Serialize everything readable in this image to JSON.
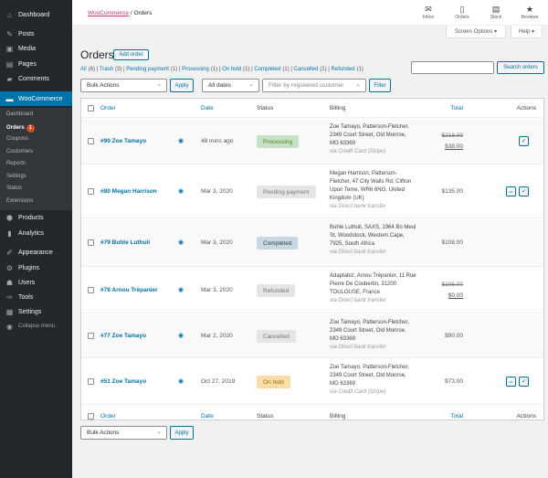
{
  "sidebar": {
    "top": [
      {
        "label": "Dashboard",
        "icon": "dashboard-icon",
        "g": "⌂"
      },
      {
        "label": "Posts",
        "icon": "pin-icon",
        "g": "✎"
      },
      {
        "label": "Media",
        "icon": "media-icon",
        "g": "▣"
      },
      {
        "label": "Pages",
        "icon": "pages-icon",
        "g": "▤"
      },
      {
        "label": "Comments",
        "icon": "comment-icon",
        "g": "▰"
      }
    ],
    "woo": "WooCommerce",
    "sub": [
      "Dashboard",
      "Orders",
      "Coupons",
      "Customers",
      "Reports",
      "Settings",
      "Status",
      "Extensions"
    ],
    "orders_badge": "1",
    "bottom": [
      {
        "label": "Products",
        "icon": "products-icon",
        "g": "⬢"
      },
      {
        "label": "Analytics",
        "icon": "analytics-icon",
        "g": "▮"
      },
      {
        "label": "Appearance",
        "icon": "appearance-icon",
        "g": "✐"
      },
      {
        "label": "Plugins",
        "icon": "plugins-icon",
        "g": "⚙"
      },
      {
        "label": "Users",
        "icon": "users-icon",
        "g": "☗"
      },
      {
        "label": "Tools",
        "icon": "tools-icon",
        "g": "✑"
      },
      {
        "label": "Settings",
        "icon": "settings-icon",
        "g": "▦"
      }
    ],
    "collapse": "Collapse menu"
  },
  "topbar": {
    "crumb_link": "WooCommerce",
    "crumb_sep": " / ",
    "crumb_current": "Orders",
    "items": [
      {
        "label": "Inbox",
        "g": "✉"
      },
      {
        "label": "Orders",
        "g": "▯"
      },
      {
        "label": "Stock",
        "g": "▤"
      },
      {
        "label": "Reviews",
        "g": "★"
      }
    ],
    "screen_options": "Screen Options ▾",
    "help": "Help ▾"
  },
  "page": {
    "title": "Orders",
    "add": "Add order",
    "search_button": "Search orders",
    "search_value": ""
  },
  "views": [
    {
      "label": "All",
      "count": "(6)"
    },
    {
      "label": "Trash",
      "count": "(3)"
    },
    {
      "label": "Pending payment",
      "count": "(1)"
    },
    {
      "label": "Processing",
      "count": "(1)"
    },
    {
      "label": "On hold",
      "count": "(1)"
    },
    {
      "label": "Completed",
      "count": "(1)"
    },
    {
      "label": "Cancelled",
      "count": "(1)"
    },
    {
      "label": "Refunded",
      "count": "(1)"
    }
  ],
  "filters": {
    "bulk": "Bulk Actions",
    "apply": "Apply",
    "dates": "All dates",
    "customer_placeholder": "Filter by registered customer",
    "filter": "Filter"
  },
  "table": {
    "headers": {
      "order": "Order",
      "date": "Date",
      "status": "Status",
      "billing": "Billing",
      "total": "Total",
      "actions": "Actions"
    },
    "rows": [
      {
        "order": "#90 Zoe Tamayo",
        "date": "48 mins ago",
        "status": "Processing",
        "bg": "#c6e1c6",
        "fg": "#5b841b",
        "billing": "Zoe Tamayo, Patterson-Fletcher, 2349 Court Street, Old Monroe, MO 63369",
        "via": "via Credit Card (Stripe)",
        "old": "$218.00",
        "total": "$38.00",
        "more": false,
        "complete": true
      },
      {
        "order": "#80 Megan Harrison",
        "date": "Mar 3, 2020",
        "status": "Pending payment",
        "bg": "#e5e5e5",
        "fg": "#777777",
        "billing": "Megan Harrison, Patterson-Fletcher, 47 City Walls Rd, Clifton Upon Teme, WR6 6NG, United Kingdom (UK)",
        "via": "via Direct bank transfer",
        "old": "",
        "total": "$135.00",
        "more": true,
        "complete": true
      },
      {
        "order": "#79 Buhle Luthuli",
        "date": "Mar 3, 2020",
        "status": "Completed",
        "bg": "#c8d7e1",
        "fg": "#2e4453",
        "billing": "Buhle Luthuli, SAXS, 1964 Bo Meul St, Woodstock, Western Cape, 7925, South Africa",
        "via": "via Direct bank transfer",
        "old": "",
        "total": "$108.00",
        "more": false,
        "complete": false
      },
      {
        "order": "#78 Arnou Trépanier",
        "date": "Mar 3, 2020",
        "status": "Refunded",
        "bg": "#e5e5e5",
        "fg": "#777777",
        "billing": "Adaptabiz, Arnou Trépanier, 11 Rue Pierre De Coubertin, 31200 TOULOUSE, France",
        "via": "via Direct bank transfer",
        "old": "$106.00",
        "total": "$0.00",
        "more": false,
        "complete": false
      },
      {
        "order": "#77 Zoe Tamayo",
        "date": "Mar 2, 2020",
        "status": "Cancelled",
        "bg": "#e5e5e5",
        "fg": "#777777",
        "billing": "Zoe Tamayo, Patterson-Fletcher, 2349 Court Street, Old Monroe, MO 63369",
        "via": "via Direct bank transfer",
        "old": "",
        "total": "$90.00",
        "more": false,
        "complete": false
      },
      {
        "order": "#51 Zoe Tamayo",
        "date": "Oct 27, 2019",
        "status": "On hold",
        "bg": "#f8dda7",
        "fg": "#94660c",
        "billing": "Zoe Tamayo, Patterson-Fletcher, 2349 Court Street, Old Monroe, MO 63369",
        "via": "via Credit Card (Stripe)",
        "old": "",
        "total": "$73.00",
        "more": true,
        "complete": true
      }
    ]
  }
}
